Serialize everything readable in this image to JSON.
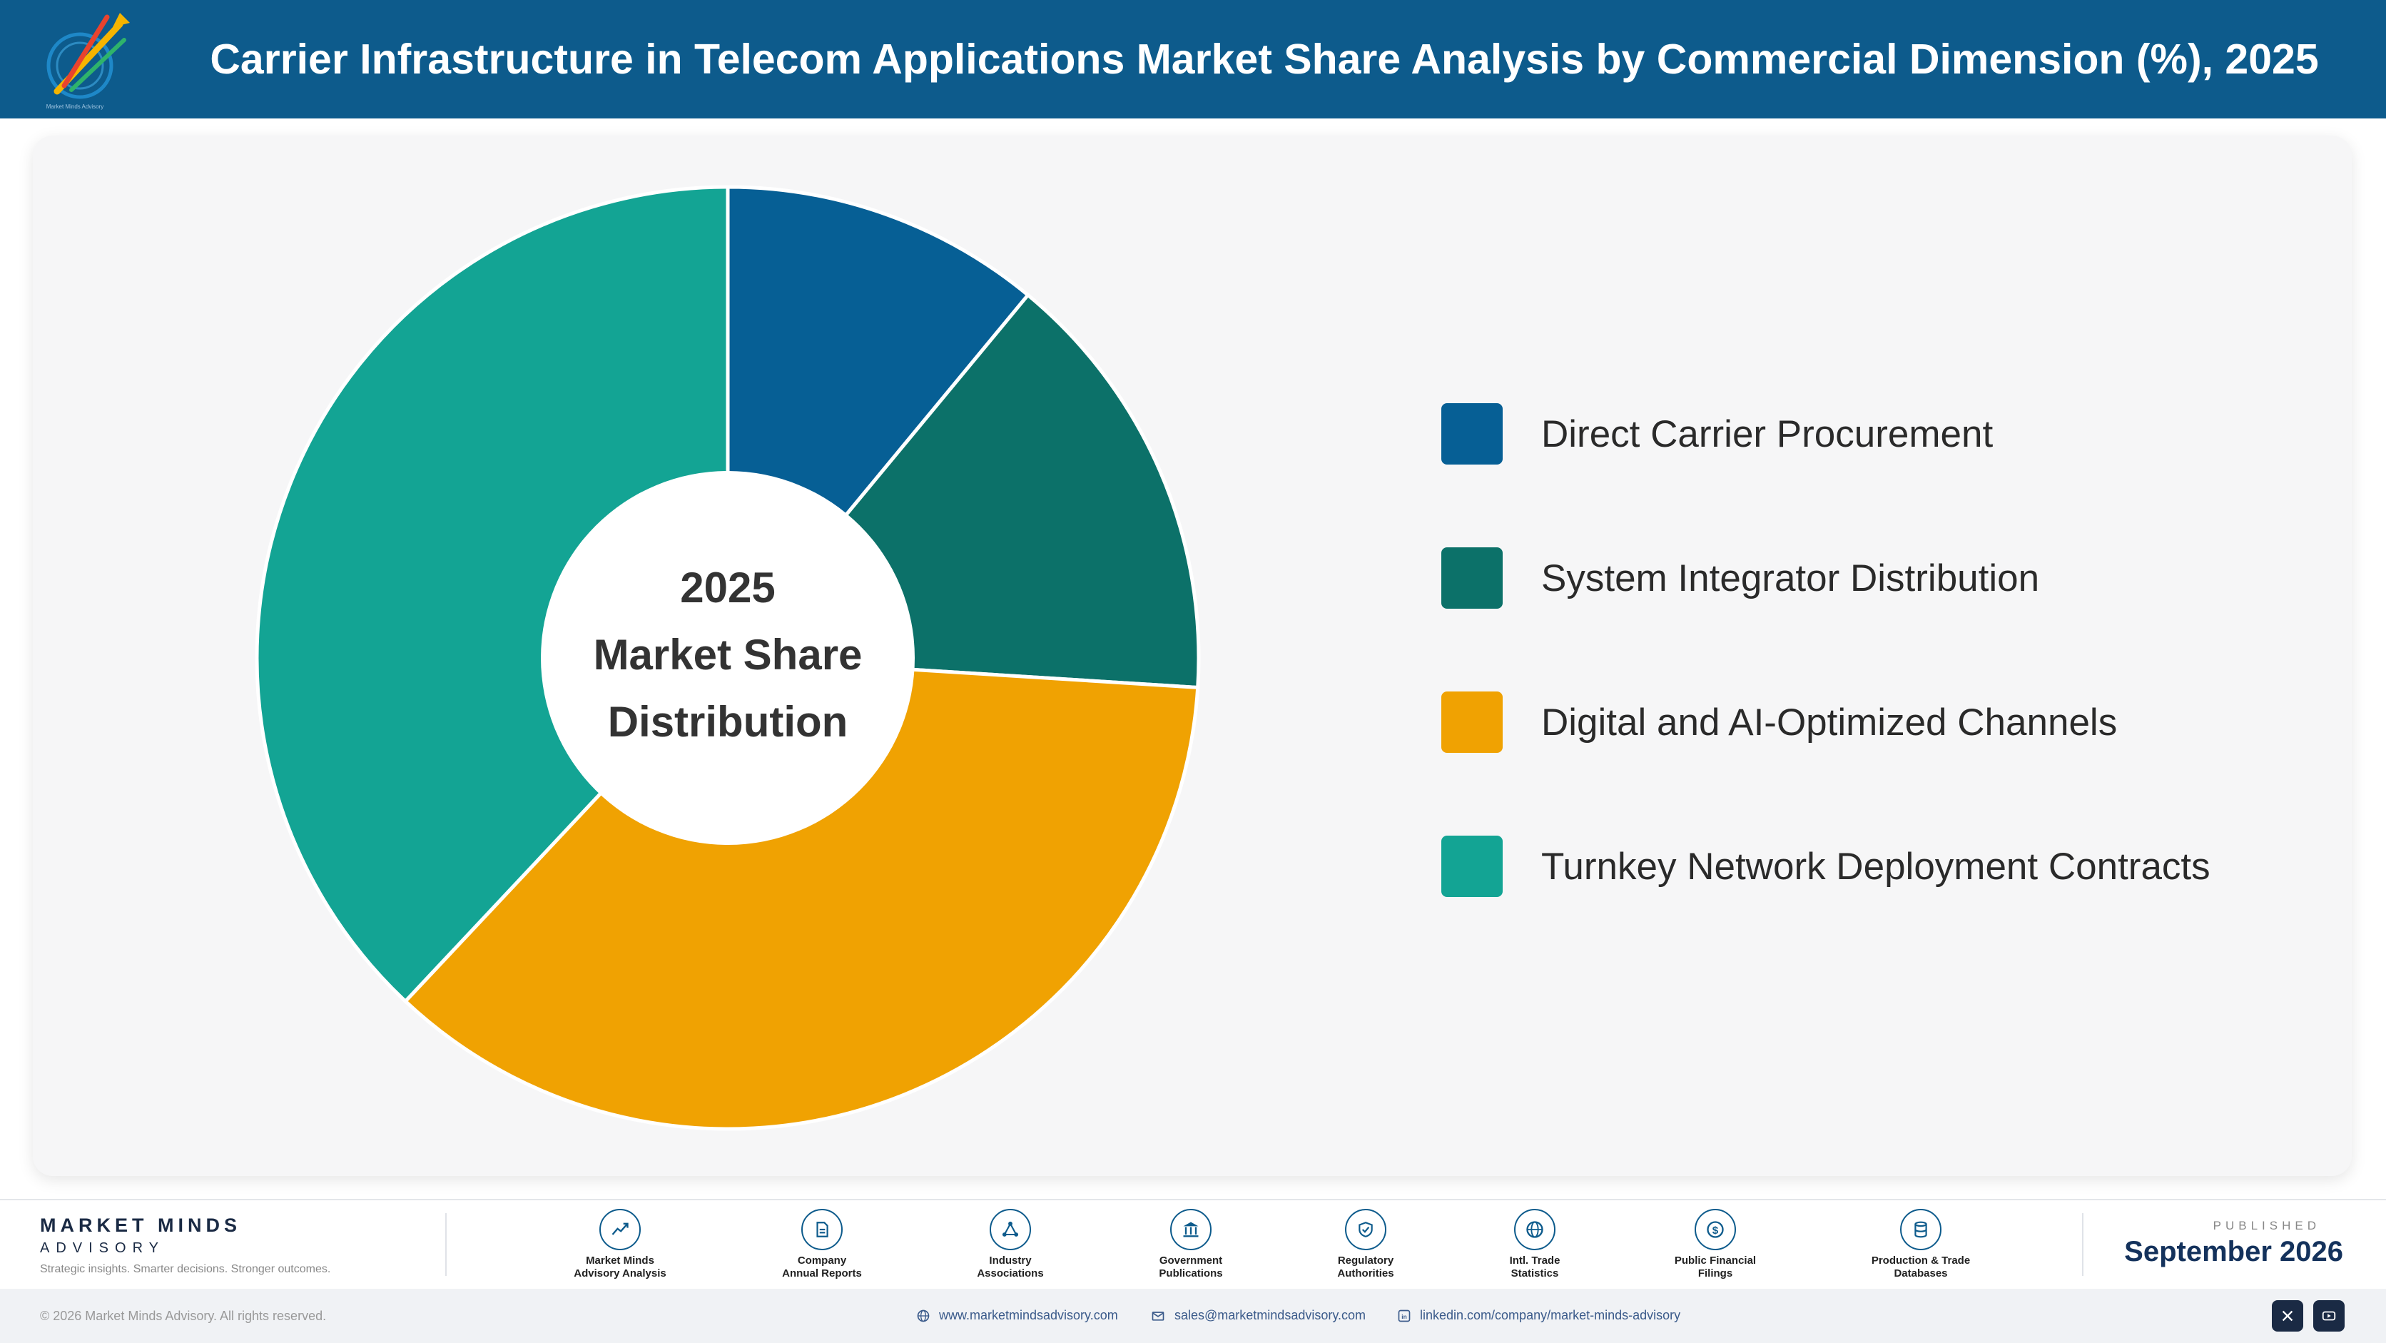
{
  "header": {
    "title": "Carrier Infrastructure in Telecom Applications Market Share Analysis by Commercial Dimension (%), 2025",
    "logo_text": "Market Minds Advisory"
  },
  "chart_data": {
    "type": "pie",
    "donut": true,
    "center_label": [
      "2025",
      "Market Share",
      "Distribution"
    ],
    "categories": [
      "Direct Carrier Procurement",
      "System Integrator Distribution",
      "Digital and AI-Optimized Channels",
      "Turnkey Network Deployment Contracts"
    ],
    "values": [
      11,
      15,
      36,
      38
    ],
    "colors": [
      "#065f95",
      "#0c7169",
      "#f0a202",
      "#13a494"
    ],
    "legend_position": "right",
    "slice_labels": false
  },
  "footer": {
    "brand_name": "MARKET MINDS",
    "brand_sub": "ADVISORY",
    "tagline": "Strategic insights. Smarter decisions. Stronger outcomes.",
    "sources": [
      {
        "label": "Market Minds\nAdvisory Analysis",
        "icon": "chart-line-icon"
      },
      {
        "label": "Company\nAnnual Reports",
        "icon": "document-icon"
      },
      {
        "label": "Industry\nAssociations",
        "icon": "network-icon"
      },
      {
        "label": "Government\nPublications",
        "icon": "government-building-icon"
      },
      {
        "label": "Regulatory\nAuthorities",
        "icon": "shield-check-icon"
      },
      {
        "label": "Intl. Trade\nStatistics",
        "icon": "globe-icon"
      },
      {
        "label": "Public Financial\nFilings",
        "icon": "dollar-coin-icon"
      },
      {
        "label": "Production & Trade\nDatabases",
        "icon": "database-icon"
      }
    ],
    "published_label": "PUBLISHED",
    "published_date": "September 2026",
    "copyright": "© 2026 Market Minds Advisory. All rights reserved.",
    "website": "www.marketmindsadvisory.com",
    "email": "sales@marketmindsadvisory.com",
    "linkedin": "linkedin.com/company/market-minds-advisory",
    "social": [
      "x-icon",
      "youtube-icon"
    ]
  }
}
